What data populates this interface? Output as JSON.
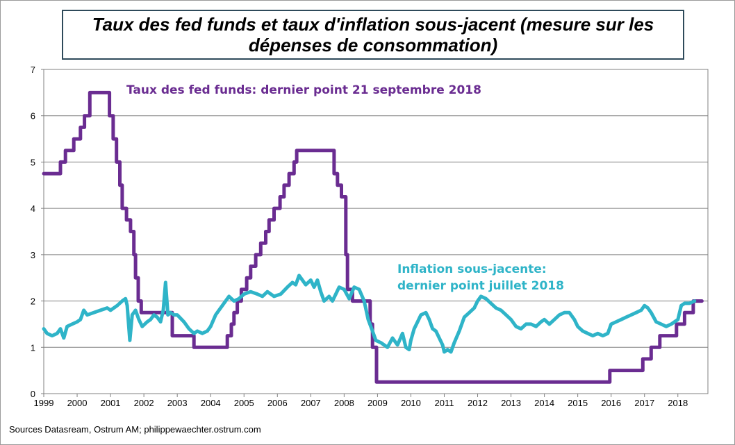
{
  "title": "Taux des fed funds et taux d'inflation sous-jacent (mesure sur les dépenses de consommation)",
  "source": "Sources Datasream, Ostrum AM; philippewaechter.ostrum.com",
  "chart_data": {
    "type": "line",
    "title": "Taux des fed funds et taux d'inflation sous-jacent (mesure sur les dépenses de consommation)",
    "xlabel": "",
    "ylabel": "",
    "xlim": [
      1999,
      2018.9
    ],
    "ylim": [
      0,
      7
    ],
    "yticks": [
      "0",
      "1",
      "2",
      "3",
      "4",
      "5",
      "6",
      "7"
    ],
    "xticks": [
      "1999",
      "2000",
      "2001",
      "2002",
      "2003",
      "2004",
      "2005",
      "2006",
      "2007",
      "2008",
      "2009",
      "2010",
      "2011",
      "2012",
      "2013",
      "2014",
      "2015",
      "2016",
      "2017",
      "2018"
    ],
    "grid": true,
    "annotations": [
      {
        "text": "Taux des fed funds: dernier point 21 septembre 2018",
        "series": "fed_funds"
      },
      {
        "text": "Inflation sous-jacente:",
        "series": "core_inflation"
      },
      {
        "text": "dernier point juillet 2018",
        "series": "core_inflation"
      }
    ],
    "series": [
      {
        "key": "fed_funds",
        "color": "#6a2c91",
        "step": true,
        "points": [
          [
            1999.0,
            4.75
          ],
          [
            1999.5,
            5.0
          ],
          [
            1999.65,
            5.25
          ],
          [
            1999.9,
            5.5
          ],
          [
            2000.1,
            5.75
          ],
          [
            2000.22,
            6.0
          ],
          [
            2000.38,
            6.5
          ],
          [
            2000.97,
            6.0
          ],
          [
            2001.08,
            5.5
          ],
          [
            2001.18,
            5.0
          ],
          [
            2001.28,
            4.5
          ],
          [
            2001.35,
            4.0
          ],
          [
            2001.48,
            3.75
          ],
          [
            2001.6,
            3.5
          ],
          [
            2001.7,
            3.0
          ],
          [
            2001.75,
            2.5
          ],
          [
            2001.83,
            2.0
          ],
          [
            2001.92,
            1.75
          ],
          [
            2002.85,
            1.25
          ],
          [
            2003.5,
            1.0
          ],
          [
            2004.5,
            1.25
          ],
          [
            2004.62,
            1.5
          ],
          [
            2004.7,
            1.75
          ],
          [
            2004.8,
            2.0
          ],
          [
            2004.92,
            2.25
          ],
          [
            2005.08,
            2.5
          ],
          [
            2005.2,
            2.75
          ],
          [
            2005.35,
            3.0
          ],
          [
            2005.5,
            3.25
          ],
          [
            2005.65,
            3.5
          ],
          [
            2005.75,
            3.75
          ],
          [
            2005.9,
            4.0
          ],
          [
            2006.08,
            4.25
          ],
          [
            2006.2,
            4.5
          ],
          [
            2006.35,
            4.75
          ],
          [
            2006.5,
            5.0
          ],
          [
            2006.58,
            5.25
          ],
          [
            2007.7,
            4.75
          ],
          [
            2007.8,
            4.5
          ],
          [
            2007.92,
            4.25
          ],
          [
            2008.05,
            3.0
          ],
          [
            2008.1,
            2.25
          ],
          [
            2008.25,
            2.0
          ],
          [
            2008.78,
            1.5
          ],
          [
            2008.85,
            1.0
          ],
          [
            2008.97,
            0.25
          ],
          [
            2015.96,
            0.5
          ],
          [
            2016.95,
            0.75
          ],
          [
            2017.2,
            1.0
          ],
          [
            2017.46,
            1.25
          ],
          [
            2017.96,
            1.5
          ],
          [
            2018.2,
            1.75
          ],
          [
            2018.46,
            2.0
          ],
          [
            2018.72,
            2.0
          ]
        ]
      },
      {
        "key": "core_inflation",
        "color": "#2fb4c8",
        "step": false,
        "points": [
          [
            1999.0,
            1.4
          ],
          [
            1999.1,
            1.3
          ],
          [
            1999.25,
            1.25
          ],
          [
            1999.4,
            1.3
          ],
          [
            1999.5,
            1.4
          ],
          [
            1999.6,
            1.2
          ],
          [
            1999.7,
            1.45
          ],
          [
            1999.85,
            1.5
          ],
          [
            2000.0,
            1.55
          ],
          [
            2000.1,
            1.6
          ],
          [
            2000.2,
            1.8
          ],
          [
            2000.3,
            1.7
          ],
          [
            2000.5,
            1.75
          ],
          [
            2000.7,
            1.8
          ],
          [
            2000.9,
            1.85
          ],
          [
            2001.0,
            1.8
          ],
          [
            2001.2,
            1.9
          ],
          [
            2001.35,
            2.0
          ],
          [
            2001.45,
            2.05
          ],
          [
            2001.5,
            1.9
          ],
          [
            2001.58,
            1.15
          ],
          [
            2001.65,
            1.7
          ],
          [
            2001.75,
            1.8
          ],
          [
            2001.85,
            1.6
          ],
          [
            2001.95,
            1.45
          ],
          [
            2002.1,
            1.55
          ],
          [
            2002.2,
            1.6
          ],
          [
            2002.3,
            1.7
          ],
          [
            2002.4,
            1.65
          ],
          [
            2002.5,
            1.55
          ],
          [
            2002.58,
            1.8
          ],
          [
            2002.65,
            2.4
          ],
          [
            2002.72,
            1.7
          ],
          [
            2002.8,
            1.75
          ],
          [
            2002.9,
            1.7
          ],
          [
            2003.0,
            1.7
          ],
          [
            2003.2,
            1.55
          ],
          [
            2003.35,
            1.4
          ],
          [
            2003.5,
            1.3
          ],
          [
            2003.6,
            1.35
          ],
          [
            2003.75,
            1.3
          ],
          [
            2003.9,
            1.35
          ],
          [
            2004.0,
            1.45
          ],
          [
            2004.15,
            1.7
          ],
          [
            2004.3,
            1.85
          ],
          [
            2004.45,
            2.0
          ],
          [
            2004.55,
            2.1
          ],
          [
            2004.7,
            2.0
          ],
          [
            2004.85,
            2.05
          ],
          [
            2005.0,
            2.15
          ],
          [
            2005.2,
            2.2
          ],
          [
            2005.4,
            2.15
          ],
          [
            2005.55,
            2.1
          ],
          [
            2005.7,
            2.2
          ],
          [
            2005.9,
            2.1
          ],
          [
            2006.1,
            2.15
          ],
          [
            2006.3,
            2.3
          ],
          [
            2006.45,
            2.4
          ],
          [
            2006.55,
            2.35
          ],
          [
            2006.65,
            2.55
          ],
          [
            2006.75,
            2.45
          ],
          [
            2006.85,
            2.35
          ],
          [
            2007.0,
            2.45
          ],
          [
            2007.1,
            2.3
          ],
          [
            2007.2,
            2.45
          ],
          [
            2007.3,
            2.2
          ],
          [
            2007.4,
            2.0
          ],
          [
            2007.55,
            2.1
          ],
          [
            2007.65,
            2.0
          ],
          [
            2007.75,
            2.15
          ],
          [
            2007.85,
            2.3
          ],
          [
            2008.0,
            2.25
          ],
          [
            2008.15,
            2.05
          ],
          [
            2008.3,
            2.3
          ],
          [
            2008.45,
            2.25
          ],
          [
            2008.6,
            2.0
          ],
          [
            2008.72,
            1.6
          ],
          [
            2008.85,
            1.35
          ],
          [
            2008.95,
            1.15
          ],
          [
            2009.1,
            1.1
          ],
          [
            2009.2,
            1.05
          ],
          [
            2009.3,
            1.0
          ],
          [
            2009.45,
            1.2
          ],
          [
            2009.6,
            1.05
          ],
          [
            2009.75,
            1.3
          ],
          [
            2009.85,
            1.0
          ],
          [
            2009.95,
            0.95
          ],
          [
            2010.0,
            1.15
          ],
          [
            2010.1,
            1.4
          ],
          [
            2010.2,
            1.55
          ],
          [
            2010.3,
            1.7
          ],
          [
            2010.45,
            1.75
          ],
          [
            2010.55,
            1.6
          ],
          [
            2010.65,
            1.4
          ],
          [
            2010.75,
            1.35
          ],
          [
            2010.85,
            1.2
          ],
          [
            2010.95,
            1.05
          ],
          [
            2011.0,
            0.9
          ],
          [
            2011.1,
            0.95
          ],
          [
            2011.2,
            0.9
          ],
          [
            2011.3,
            1.1
          ],
          [
            2011.45,
            1.35
          ],
          [
            2011.6,
            1.65
          ],
          [
            2011.75,
            1.75
          ],
          [
            2011.9,
            1.85
          ],
          [
            2012.0,
            2.0
          ],
          [
            2012.1,
            2.1
          ],
          [
            2012.25,
            2.05
          ],
          [
            2012.4,
            1.95
          ],
          [
            2012.55,
            1.85
          ],
          [
            2012.7,
            1.8
          ],
          [
            2012.85,
            1.7
          ],
          [
            2013.0,
            1.6
          ],
          [
            2013.15,
            1.45
          ],
          [
            2013.3,
            1.4
          ],
          [
            2013.45,
            1.5
          ],
          [
            2013.6,
            1.5
          ],
          [
            2013.75,
            1.45
          ],
          [
            2013.9,
            1.55
          ],
          [
            2014.0,
            1.6
          ],
          [
            2014.15,
            1.5
          ],
          [
            2014.3,
            1.6
          ],
          [
            2014.45,
            1.7
          ],
          [
            2014.6,
            1.75
          ],
          [
            2014.75,
            1.75
          ],
          [
            2014.9,
            1.6
          ],
          [
            2015.0,
            1.45
          ],
          [
            2015.15,
            1.35
          ],
          [
            2015.3,
            1.3
          ],
          [
            2015.45,
            1.25
          ],
          [
            2015.6,
            1.3
          ],
          [
            2015.75,
            1.25
          ],
          [
            2015.9,
            1.3
          ],
          [
            2016.0,
            1.5
          ],
          [
            2016.15,
            1.55
          ],
          [
            2016.3,
            1.6
          ],
          [
            2016.45,
            1.65
          ],
          [
            2016.6,
            1.7
          ],
          [
            2016.75,
            1.75
          ],
          [
            2016.9,
            1.8
          ],
          [
            2017.0,
            1.9
          ],
          [
            2017.1,
            1.85
          ],
          [
            2017.2,
            1.75
          ],
          [
            2017.35,
            1.55
          ],
          [
            2017.5,
            1.5
          ],
          [
            2017.65,
            1.45
          ],
          [
            2017.8,
            1.5
          ],
          [
            2017.9,
            1.55
          ],
          [
            2018.0,
            1.6
          ],
          [
            2018.1,
            1.9
          ],
          [
            2018.2,
            1.95
          ],
          [
            2018.35,
            1.95
          ],
          [
            2018.5,
            2.0
          ]
        ]
      }
    ]
  }
}
